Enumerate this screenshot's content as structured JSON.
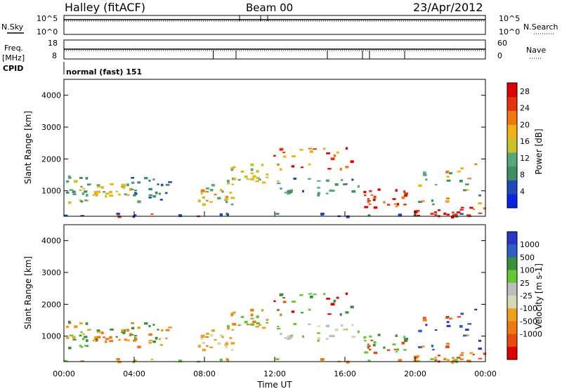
{
  "header": {
    "site": "Halley (fitACF)",
    "beam": "Beam 00",
    "date": "23/Apr/2012"
  },
  "strip_labels": {
    "nsky": "N.Sky",
    "nsearch": "N.Search",
    "freq_line1": "Freq.",
    "freq_line2": "[MHz]",
    "nave": "Nave",
    "cpid": "CPID",
    "cpid_value": "normal (fast) 151"
  },
  "colors": {
    "power_scale": [
      "#0a23e6",
      "#2048b8",
      "#3f8f63",
      "#56a87c",
      "#c9c22a",
      "#f0b215",
      "#f07a10",
      "#e8320c",
      "#e00000"
    ],
    "velocity_scale": [
      "#2a36c8",
      "#2f5ec8",
      "#3a8f3a",
      "#64c832",
      "#bdbdbd",
      "#d8d8b4",
      "#f0a020",
      "#f07a10",
      "#e84a10",
      "#e00000"
    ]
  },
  "chart_data": [
    {
      "type": "line",
      "panel": "N.Sky / N.Search",
      "y_left_ticks": [
        "10^5",
        "10^0"
      ],
      "y_right_ticks": [
        "10^5",
        "10^0"
      ]
    },
    {
      "type": "line",
      "panel": "Freq. / Nave",
      "y_left_ticks": [
        "18",
        "8"
      ],
      "y_right_ticks": [
        "60",
        "0"
      ]
    },
    {
      "type": "heatmap",
      "panel": "power",
      "ylabel": "Slant Range [km]",
      "yticks": [
        1000,
        2000,
        3000,
        4000
      ],
      "ylim": [
        200,
        4500
      ],
      "xlim": [
        0,
        24
      ],
      "colorbar_label": "Power [dB]",
      "colorbar_ticks": [
        4,
        8,
        12,
        16,
        20,
        24,
        28
      ],
      "colorbar_range": [
        0,
        30
      ]
    },
    {
      "type": "heatmap",
      "panel": "velocity",
      "ylabel": "Slant Range [km]",
      "yticks": [
        1000,
        2000,
        3000,
        4000
      ],
      "ylim": [
        200,
        4500
      ],
      "xlim": [
        0,
        24
      ],
      "xticks": [
        "00:00",
        "04:00",
        "08:00",
        "12:00",
        "16:00",
        "20:00",
        "00:00"
      ],
      "xlabel": "Time UT",
      "colorbar_label": "Velocity [m s-1]",
      "colorbar_ticks": [
        1000,
        500,
        100,
        25,
        -25,
        -100,
        -500,
        -1000
      ]
    }
  ]
}
